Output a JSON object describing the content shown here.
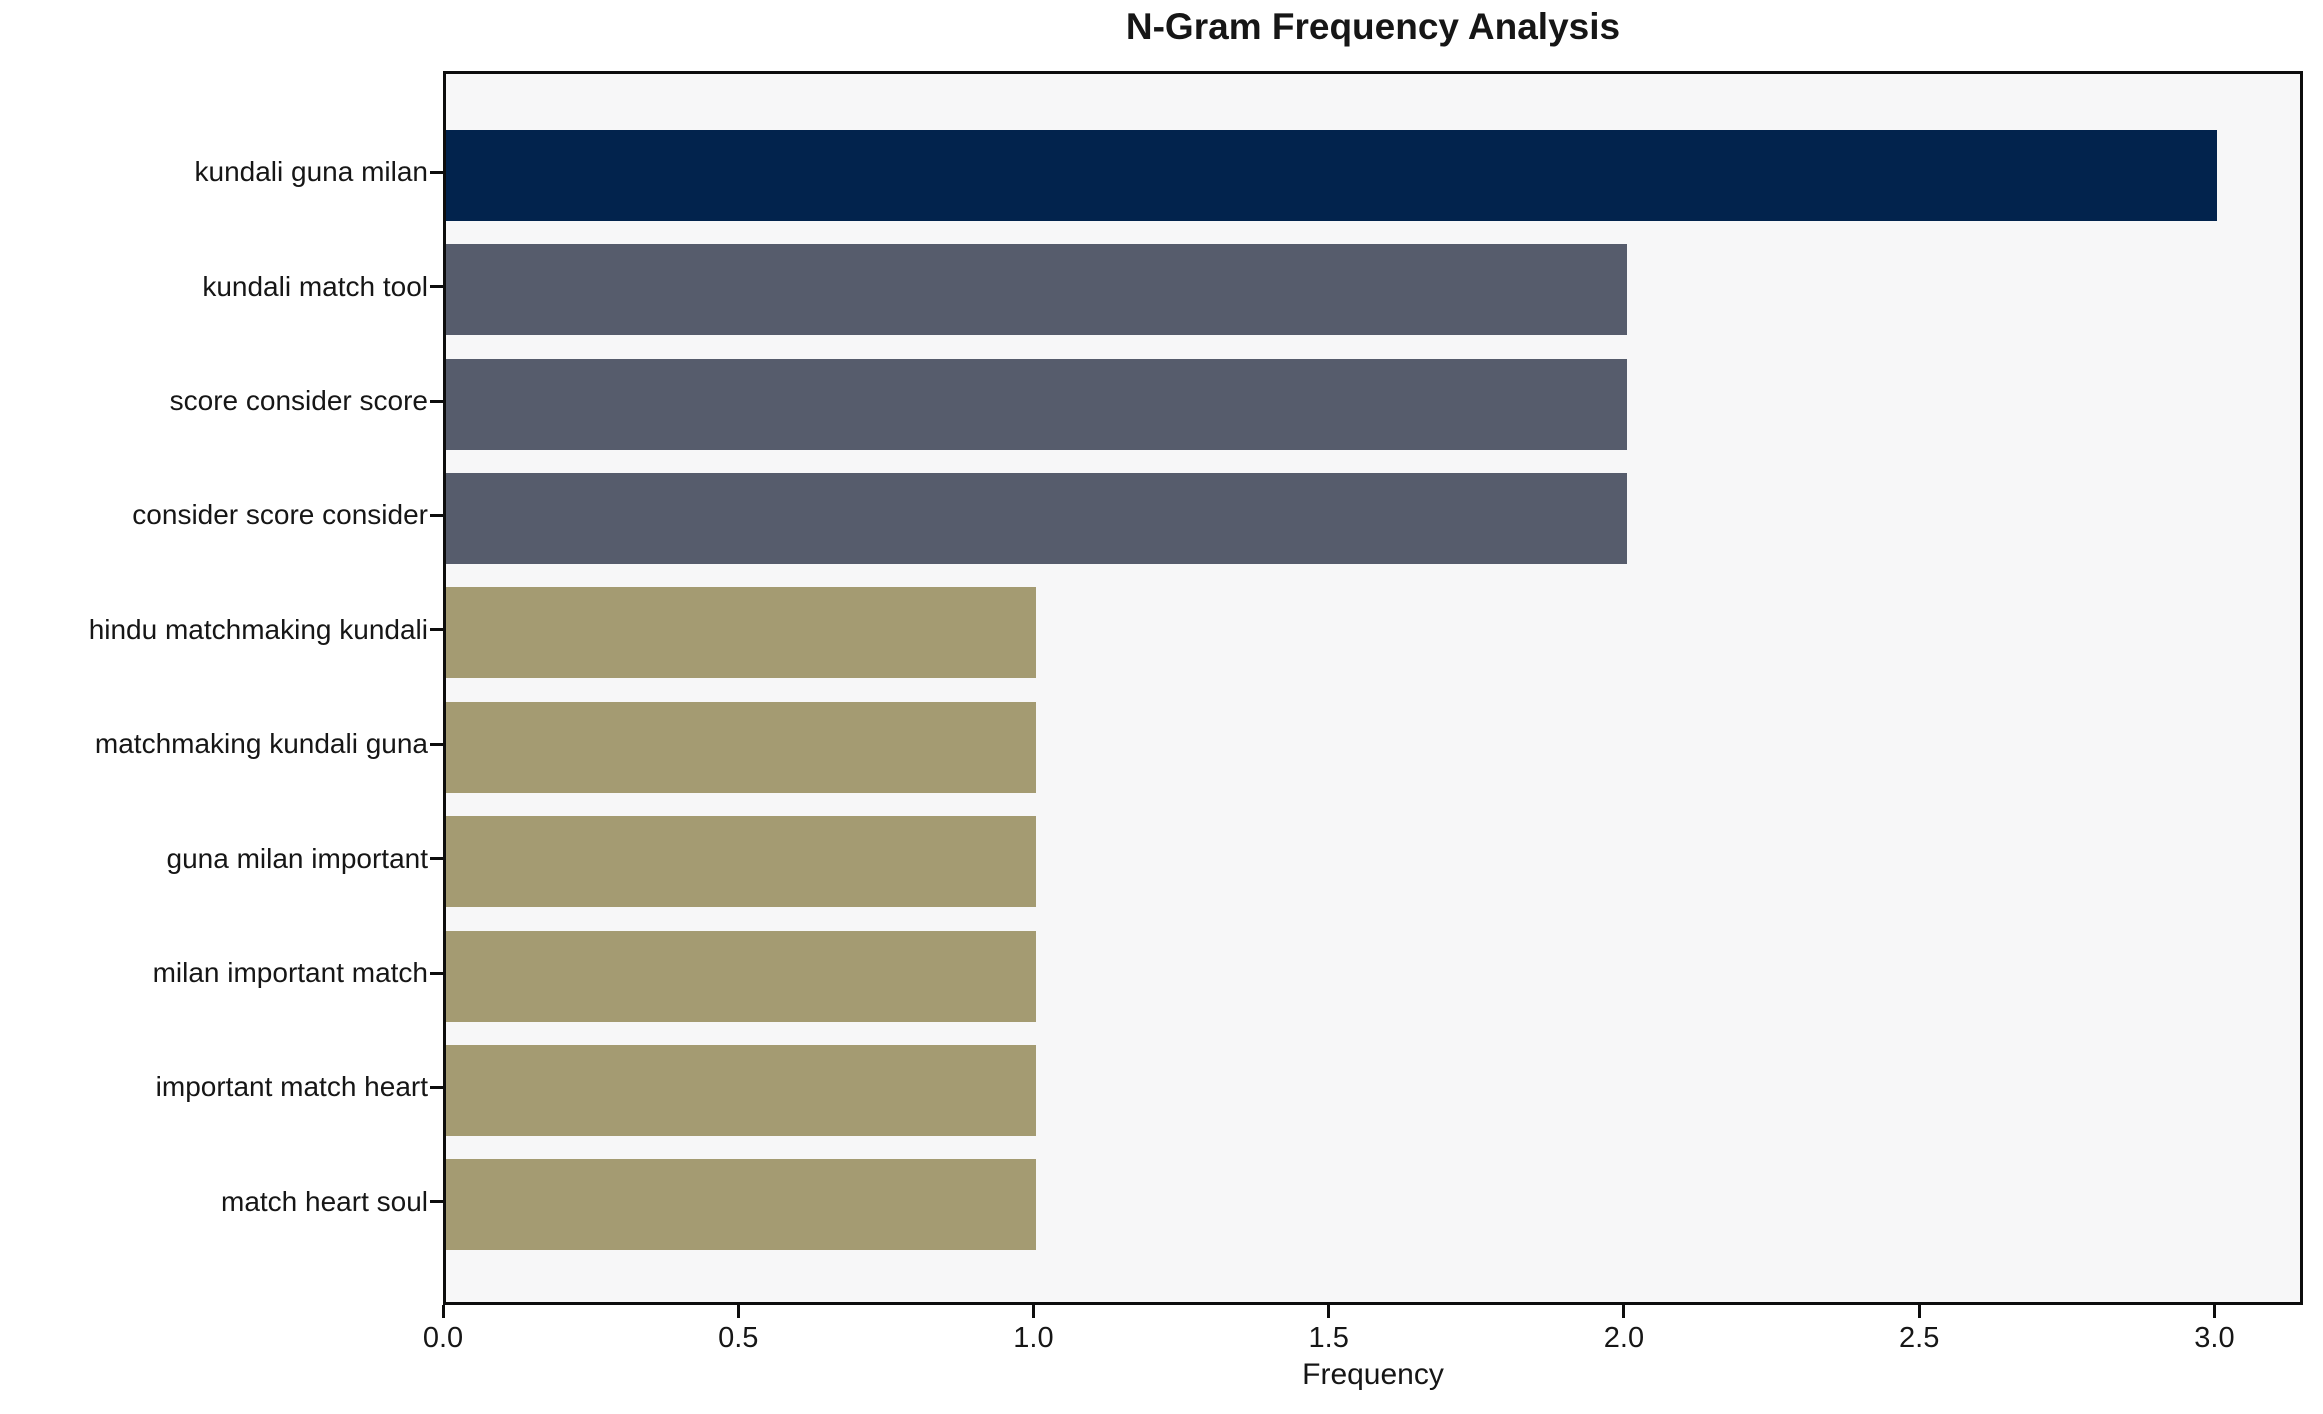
{
  "chart_data": {
    "type": "bar",
    "orientation": "horizontal",
    "title": "N-Gram Frequency Analysis",
    "xlabel": "Frequency",
    "ylabel": "",
    "categories": [
      "kundali guna milan",
      "kundali match tool",
      "score consider score",
      "consider score consider",
      "hindu matchmaking kundali",
      "matchmaking kundali guna",
      "guna milan important",
      "milan important match",
      "important match heart",
      "match heart soul"
    ],
    "values": [
      3,
      2,
      2,
      2,
      1,
      1,
      1,
      1,
      1,
      1
    ],
    "bar_colors": [
      "#02234d",
      "#565c6c",
      "#565c6c",
      "#565c6c",
      "#a49b72",
      "#a49b72",
      "#a49b72",
      "#a49b72",
      "#a49b72",
      "#a49b72"
    ],
    "x_tick_labels": [
      "0.0",
      "0.5",
      "1.0",
      "1.5",
      "2.0",
      "2.5",
      "3.0"
    ],
    "x_tick_values": [
      0,
      0.5,
      1,
      1.5,
      2,
      2.5,
      3
    ],
    "xlim": [
      0,
      3.15
    ],
    "grid": false,
    "legend_position": "none",
    "colors": {
      "plot_background": "#f7f7f8",
      "figure_background": "#ffffff",
      "axis": "#0d0d0d",
      "text": "#161616"
    }
  }
}
